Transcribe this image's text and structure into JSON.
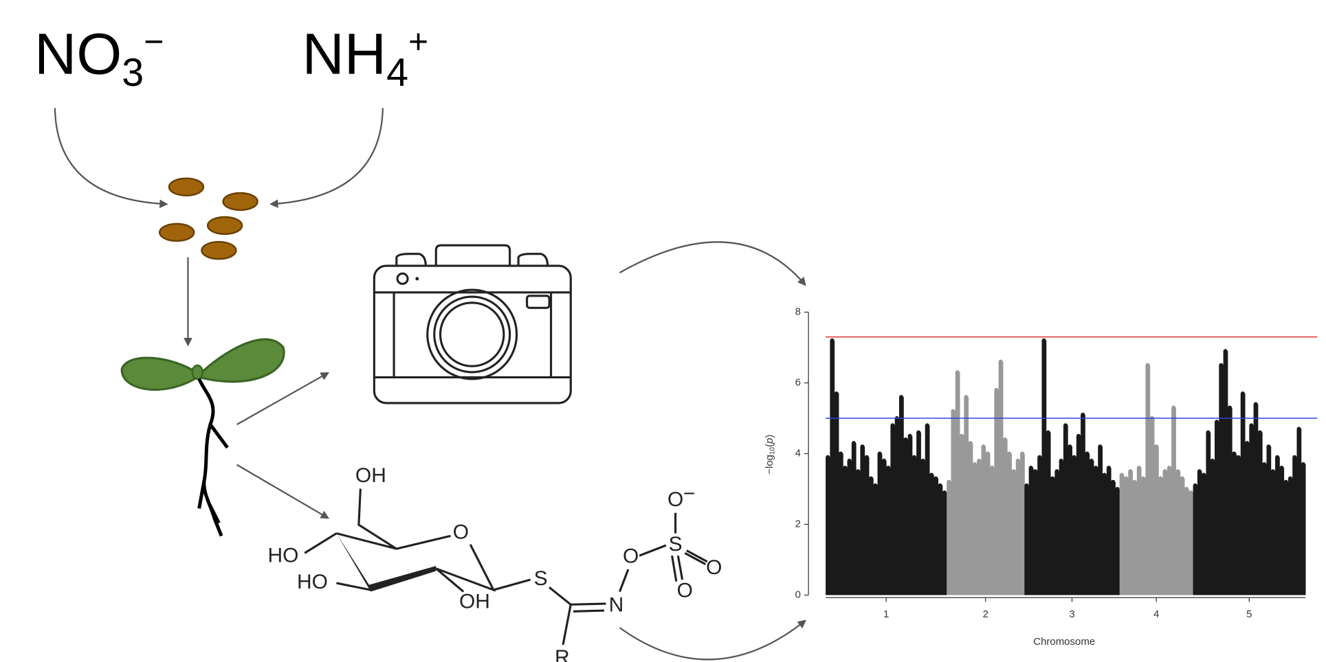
{
  "ions": {
    "nitrate": [
      "NO",
      "3",
      "−"
    ],
    "ammonium": [
      "NH",
      "4",
      "+"
    ]
  },
  "molecule": {
    "atoms": [
      "OH",
      "O",
      "HO",
      "HO",
      "OH",
      "S",
      "N",
      "O",
      "O",
      "−",
      "S",
      "O",
      "O",
      "R"
    ]
  },
  "chart_data": {
    "type": "manhattan",
    "xlabel": "Chromosome",
    "ylabel_parts": [
      "−log",
      "10",
      "(",
      "p",
      ")"
    ],
    "ylim": [
      0,
      8
    ],
    "yticks": [
      0,
      2,
      4,
      6,
      8
    ],
    "thresholds": [
      {
        "value": 7.3,
        "color": "#e03030"
      },
      {
        "value": 5.0,
        "color": "#3344dd"
      }
    ],
    "chromosomes": [
      {
        "label": "1",
        "color": "#1a1a1a",
        "values": [
          3.9,
          7.2,
          5.7,
          4.0,
          3.6,
          3.8,
          4.3,
          3.5,
          4.2,
          3.9,
          3.3,
          3.1,
          4.0,
          3.8,
          3.6,
          4.8,
          5.0,
          5.6,
          4.4,
          4.5,
          3.9,
          4.6,
          3.8,
          4.8,
          3.4,
          3.3,
          3.1,
          2.9
        ]
      },
      {
        "label": "2",
        "color": "#999999",
        "values": [
          3.2,
          5.2,
          6.3,
          4.5,
          5.6,
          4.3,
          3.7,
          3.8,
          4.2,
          4.0,
          3.6,
          5.8,
          6.6,
          4.4,
          4.0,
          3.5,
          3.8,
          4.0
        ]
      },
      {
        "label": "3",
        "color": "#1a1a1a",
        "values": [
          3.1,
          3.6,
          3.5,
          3.9,
          7.2,
          4.6,
          3.3,
          3.5,
          3.8,
          4.8,
          4.2,
          3.9,
          4.5,
          5.1,
          4.0,
          3.8,
          3.6,
          4.2,
          3.4,
          3.6,
          3.2,
          3.0
        ]
      },
      {
        "label": "4",
        "color": "#999999",
        "values": [
          3.4,
          3.3,
          3.5,
          3.2,
          3.6,
          3.3,
          6.5,
          5.0,
          4.2,
          3.3,
          3.5,
          3.6,
          5.3,
          3.5,
          3.3,
          3.0,
          2.9
        ]
      },
      {
        "label": "5",
        "color": "#1a1a1a",
        "values": [
          3.1,
          3.5,
          3.4,
          4.6,
          3.8,
          4.9,
          6.5,
          6.9,
          5.3,
          4.0,
          3.9,
          5.7,
          4.3,
          4.8,
          5.4,
          4.6,
          3.7,
          4.2,
          3.5,
          3.9,
          3.6,
          3.2,
          3.3,
          3.9,
          4.7,
          3.7
        ]
      }
    ]
  }
}
